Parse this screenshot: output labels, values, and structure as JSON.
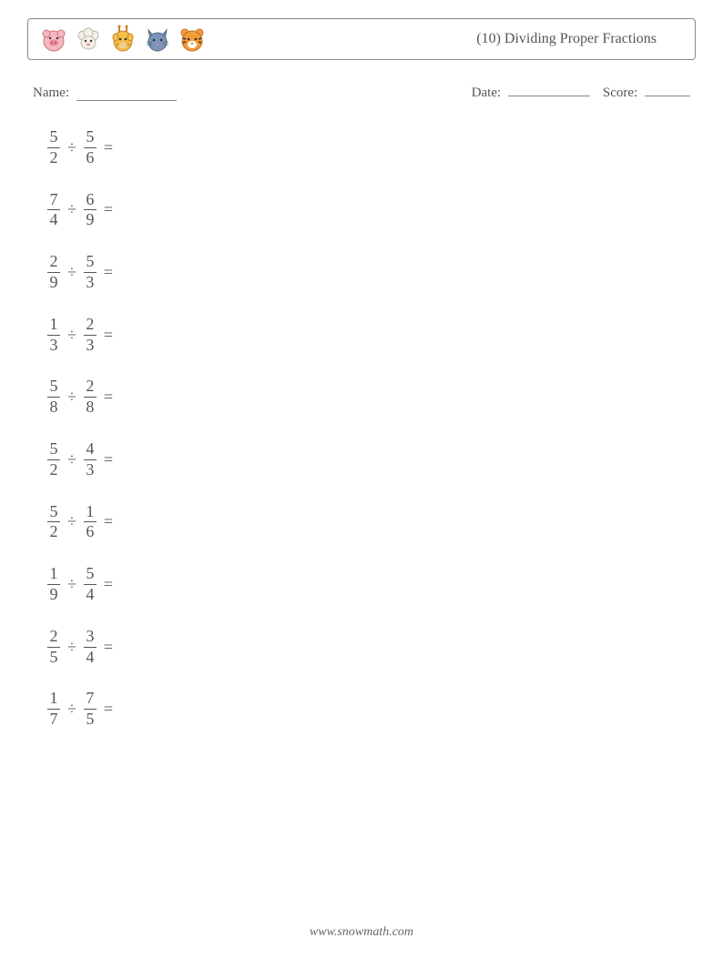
{
  "header": {
    "title": "(10) Dividing Proper Fractions",
    "icons": [
      "pig",
      "sheep",
      "giraffe",
      "cat",
      "tiger"
    ]
  },
  "info": {
    "name_label": "Name:",
    "name_blank_width": 110,
    "date_label": "Date:",
    "date_blank_width": 90,
    "score_label": "Score:",
    "score_blank_width": 50
  },
  "problems": [
    {
      "n1": "5",
      "d1": "2",
      "n2": "5",
      "d2": "6"
    },
    {
      "n1": "7",
      "d1": "4",
      "n2": "6",
      "d2": "9"
    },
    {
      "n1": "2",
      "d1": "9",
      "n2": "5",
      "d2": "3"
    },
    {
      "n1": "1",
      "d1": "3",
      "n2": "2",
      "d2": "3"
    },
    {
      "n1": "5",
      "d1": "8",
      "n2": "2",
      "d2": "8"
    },
    {
      "n1": "5",
      "d1": "2",
      "n2": "4",
      "d2": "3"
    },
    {
      "n1": "5",
      "d1": "2",
      "n2": "1",
      "d2": "6"
    },
    {
      "n1": "1",
      "d1": "9",
      "n2": "5",
      "d2": "4"
    },
    {
      "n1": "2",
      "d1": "5",
      "n2": "3",
      "d2": "4"
    },
    {
      "n1": "1",
      "d1": "7",
      "n2": "7",
      "d2": "5"
    }
  ],
  "operator": "÷",
  "equals": "=",
  "footer": "www.snowmath.com",
  "colors": {
    "text": "#555555",
    "border": "#888888",
    "background": "#ffffff"
  }
}
